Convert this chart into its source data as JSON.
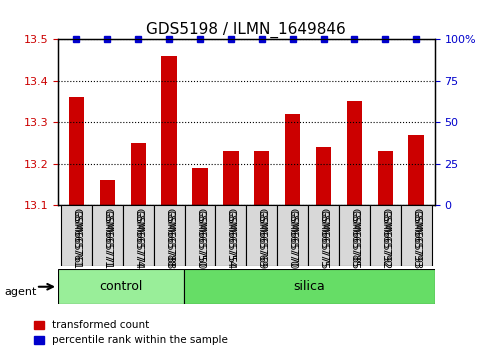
{
  "title": "GDS5198 / ILMN_1649846",
  "samples": [
    "GSM665761",
    "GSM665771",
    "GSM665774",
    "GSM665788",
    "GSM665750",
    "GSM665754",
    "GSM665769",
    "GSM665770",
    "GSM665775",
    "GSM665785",
    "GSM665792",
    "GSM665793"
  ],
  "values": [
    13.36,
    13.16,
    13.25,
    13.46,
    13.19,
    13.23,
    13.23,
    13.32,
    13.24,
    13.35,
    13.23,
    13.27
  ],
  "percentile_ranks": [
    100,
    100,
    100,
    100,
    100,
    100,
    100,
    100,
    100,
    100,
    100,
    100
  ],
  "control_count": 4,
  "silica_count": 8,
  "ylim_left": [
    13.1,
    13.5
  ],
  "ylim_right": [
    0,
    100
  ],
  "yticks_left": [
    13.1,
    13.2,
    13.3,
    13.4,
    13.5
  ],
  "yticks_right": [
    0,
    25,
    50,
    75,
    100
  ],
  "bar_color": "#cc0000",
  "dot_color": "#0000cc",
  "control_color": "#99ee99",
  "silica_color": "#66dd66",
  "tick_label_color_left": "#cc0000",
  "tick_label_color_right": "#0000cc",
  "legend_items": [
    "transformed count",
    "percentile rank within the sample"
  ],
  "agent_label": "agent",
  "control_label": "control",
  "silica_label": "silica",
  "background_color": "#ffffff",
  "grid_color": "#000000",
  "bar_width": 0.5
}
